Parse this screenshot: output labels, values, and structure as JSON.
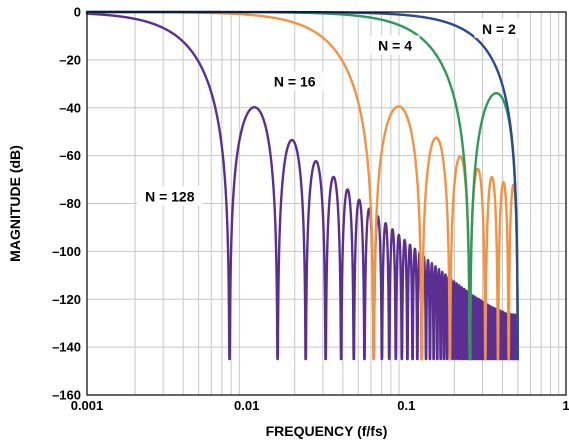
{
  "chart_data": {
    "type": "line",
    "xlabel": "FREQUENCY (f/fs)",
    "ylabel": "MAGNITUDE (dB)",
    "xscale": "log",
    "xlim": [
      0.001,
      1
    ],
    "ylim": [
      -160,
      0
    ],
    "grid": true,
    "x_ticks": [
      {
        "value": 0.001,
        "label": "0.001"
      },
      {
        "value": 0.01,
        "label": "0.01"
      },
      {
        "value": 0.1,
        "label": "0.1"
      },
      {
        "value": 1,
        "label": "1"
      }
    ],
    "y_ticks": [
      {
        "value": 0,
        "label": "0"
      },
      {
        "value": -20,
        "label": "–20"
      },
      {
        "value": -40,
        "label": "–40"
      },
      {
        "value": -60,
        "label": "–60"
      },
      {
        "value": -80,
        "label": "–80"
      },
      {
        "value": -100,
        "label": "–100"
      },
      {
        "value": -120,
        "label": "–120"
      },
      {
        "value": -140,
        "label": "–140"
      },
      {
        "value": -160,
        "label": "–160"
      }
    ],
    "series": [
      {
        "label": "N = 2",
        "N": 2,
        "color": "#2a4a8e"
      },
      {
        "label": "N = 4",
        "N": 4,
        "color": "#2e9a5a"
      },
      {
        "label": "N = 16",
        "N": 16,
        "color": "#f39241"
      },
      {
        "label": "N = 128",
        "N": 128,
        "color": "#5b2f91"
      }
    ],
    "annotations": [
      {
        "text": "N = 2",
        "x": 0.38,
        "y": -7
      },
      {
        "text": "N = 4",
        "x": 0.085,
        "y": -14
      },
      {
        "text": "N = 16",
        "x": 0.02,
        "y": -29
      },
      {
        "text": "N = 128",
        "x": 0.0033,
        "y": -77
      }
    ]
  }
}
